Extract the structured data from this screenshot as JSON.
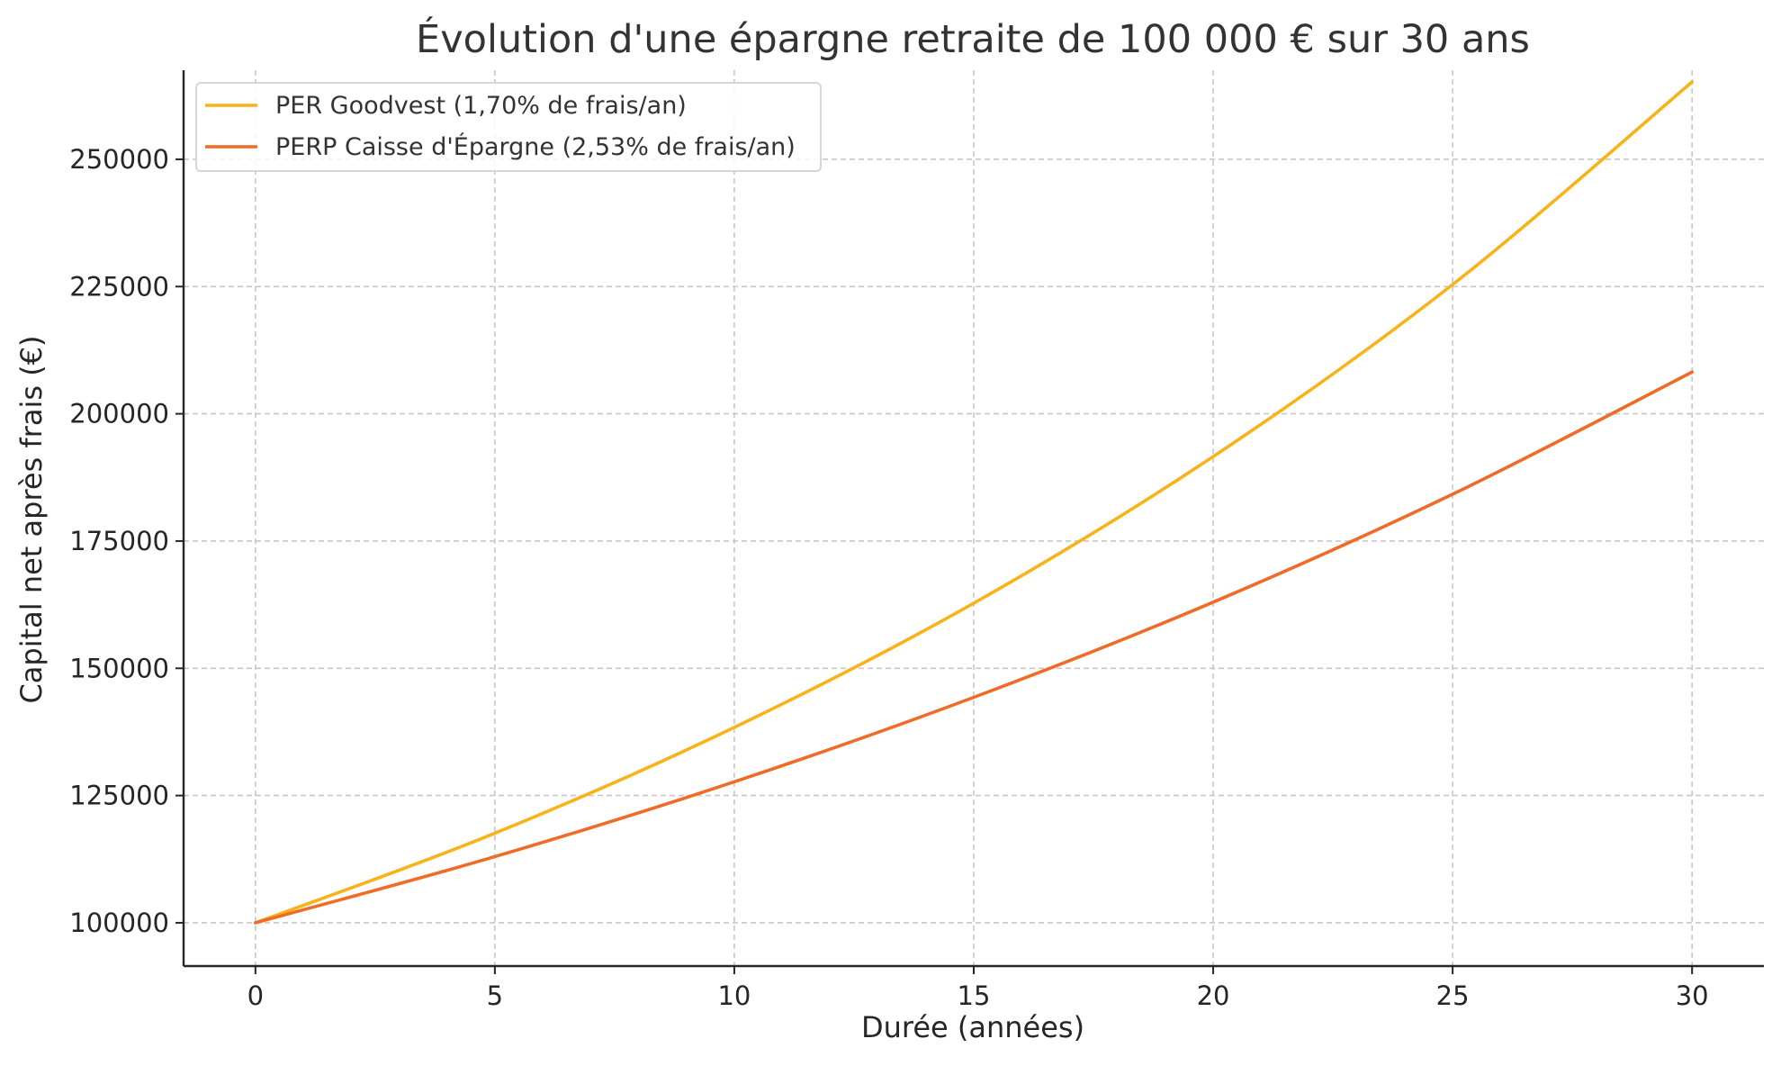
{
  "chart_data": {
    "type": "line",
    "title": "Évolution d'une épargne retraite de 100 000 € sur 30 ans",
    "xlabel": "Durée (années)",
    "ylabel": "Capital net après frais (€)",
    "xlim": [
      -1.5,
      31.5
    ],
    "ylim": [
      91500,
      267500
    ],
    "x_ticks": [
      0,
      5,
      10,
      15,
      20,
      25,
      30
    ],
    "x_tick_labels": [
      "0",
      "5",
      "10",
      "15",
      "20",
      "25",
      "30"
    ],
    "y_ticks": [
      100000,
      125000,
      150000,
      175000,
      200000,
      225000,
      250000
    ],
    "y_tick_labels": [
      "100000",
      "125000",
      "150000",
      "175000",
      "200000",
      "225000",
      "250000"
    ],
    "grid": true,
    "legend_position": "top-left",
    "series": [
      {
        "name": "PER Goodvest (1,70% de frais/an)",
        "color": "#f9b31a",
        "x": [
          0,
          5,
          10,
          15,
          20,
          25,
          30
        ],
        "values": [
          100000,
          117600,
          138400,
          162800,
          191600,
          225400,
          265200
        ]
      },
      {
        "name": "PERP Caisse d'Épargne (2,53% de frais/an)",
        "color": "#ef6c28",
        "x": [
          0,
          5,
          10,
          15,
          20,
          25,
          30
        ],
        "values": [
          100000,
          113000,
          127700,
          144300,
          163000,
          184200,
          208200
        ]
      }
    ]
  }
}
